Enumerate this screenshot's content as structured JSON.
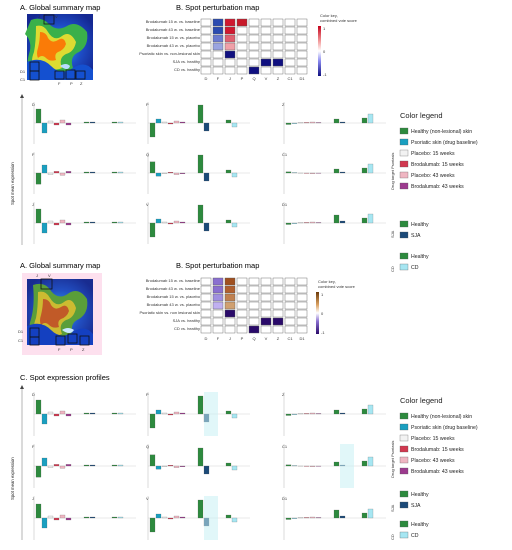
{
  "colors": {
    "healthy": "#2d8a3e",
    "psoriatic": "#1a9fc0",
    "placebo15": "#f2f2f2",
    "brodalumab15": "#d1384f",
    "placebo43": "#efb6c2",
    "brodalumab43": "#9c3a8e",
    "sja": "#1c4a78",
    "cd": "#a6e6f2",
    "highlight": "#c8f0f4",
    "pink_highlight": "#fde0ee"
  },
  "top": {
    "section_a": "A. Global summary map",
    "section_b": "B. Spot perturbation map",
    "map_labels": [
      "J",
      "V",
      "D1",
      "C1",
      "F",
      "P",
      "Z"
    ],
    "row_labels": [
      "Brodalumab 15 w. vs. baseline",
      "Brodalumab 43 w. vs. baseline",
      "Brodalumab 15 w. vs. placebo",
      "Brodalumab 43 w. vs. placebo",
      "Psoriatic skin vs. non-lesional skin",
      "SJA vs. healthy",
      "CD vs. healthy"
    ],
    "col_labels": [
      "D",
      "F",
      "J",
      "P",
      "Q",
      "V",
      "Z",
      "C1",
      "D1"
    ],
    "color_key_title": "Color key,",
    "color_key_sub": "combined vote score",
    "color_key_ticks": [
      "1",
      "0",
      "-1"
    ],
    "y_axis": "Spot mean expression",
    "panel_labels": [
      "D",
      "P",
      "Z",
      "F",
      "Q",
      "C1",
      "J",
      "V",
      "D1"
    ],
    "legend_title": "Color legend",
    "legend_group1": "Drug target Psoriasis",
    "legend_items": [
      "Healthy (non-lesional) skin",
      "Psoriatic skin (drug baseline)",
      "Placebo: 15 weeks",
      "Brodalumab: 15 weeks",
      "Placebo: 43 weeks",
      "Brodalumab: 43 weeks"
    ],
    "sja_label": "SJA",
    "sja_items": [
      "Healthy",
      "SJA"
    ],
    "cd_label": "CD",
    "cd_items": [
      "Healthy",
      "CD"
    ]
  },
  "bottom": {
    "section_a": "A. Global summary map",
    "section_b": "B. Spot perturbation map",
    "section_c": "C. Spot expression profiles",
    "map_labels": [
      "J",
      "V",
      "D1",
      "C1",
      "F",
      "P",
      "Z"
    ],
    "row_labels": [
      "Brodalumab 15 w. vs. baseline",
      "Brodalumab 43 w. vs. baseline",
      "Brodalumab 15 w. vs. placebo",
      "Brodalumab 43 w. vs. placebo",
      "Psoriatic skin vs. non lesional skin",
      "SJA vs. healthy",
      "CD vs. healthy"
    ],
    "col_labels": [
      "D",
      "F",
      "J",
      "P",
      "Q",
      "V",
      "Z",
      "C1",
      "D1"
    ],
    "color_key_title": "Color key,",
    "color_key_sub": "combined vote score",
    "color_key_ticks": [
      "1",
      "0",
      "-1"
    ],
    "y_axis": "Spot mean expression",
    "panel_labels": [
      "D",
      "P",
      "Z",
      "F",
      "Q",
      "C1",
      "J",
      "V",
      "D1"
    ],
    "legend_title": "Color legend",
    "legend_group1": "Drug target Psoriasis",
    "legend_items": [
      "Healthy (non-lesional) skin",
      "Psoriatic skin (drug baseline)",
      "Placebo: 15 weeks",
      "Brodalumab: 15 weeks",
      "Placebo: 43 weeks",
      "Brodalumab: 43 weeks"
    ],
    "sja_label": "SJA",
    "sja_items": [
      "Healthy",
      "SJA"
    ],
    "cd_label": "CD",
    "cd_items": [
      "Healthy",
      "CD"
    ]
  }
}
